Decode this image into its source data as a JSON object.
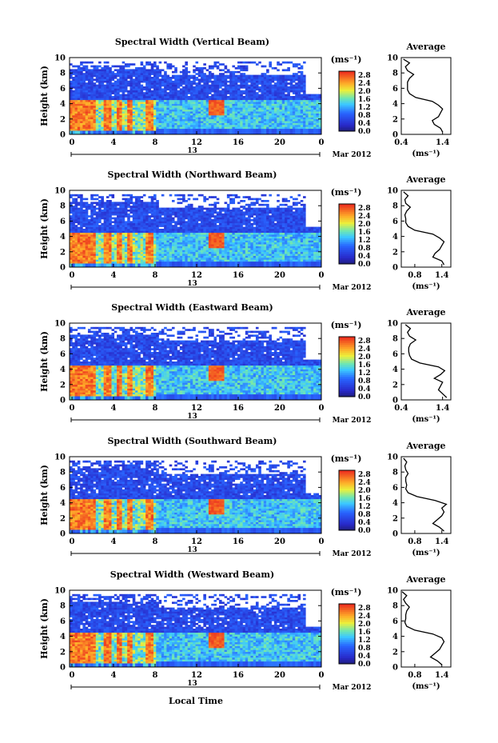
{
  "page": {
    "panel_titles": [
      "Spectral Width (Vertical Beam)",
      "Spectral Width (Northward Beam)",
      "Spectral Width (Eastward Beam)",
      "Spectral Width (Southward Beam)",
      "Spectral Width (Westward Beam)"
    ],
    "average_title": "Average",
    "ylabel": "Height (km)",
    "unit_label": "(ms⁻¹)",
    "date_label": "Mar 2012",
    "day_label": "13",
    "xlabel": "Local Time",
    "avg_xlabel": "(ms⁻¹)"
  },
  "chart_data": [
    {
      "type": "heatmap",
      "title": "Spectral Width (Vertical Beam)",
      "ylabel": "Height (km)",
      "x_ticks": [
        "0",
        "4",
        "8",
        "12",
        "16",
        "20",
        "0"
      ],
      "xlim": [
        0,
        24
      ],
      "y_ticks": [
        "0",
        "2",
        "4",
        "6",
        "8",
        "10"
      ],
      "ylim": [
        0,
        10
      ],
      "colorbar": {
        "label": "(ms⁻¹)",
        "ticks": [
          "0.0",
          "0.4",
          "0.8",
          "1.2",
          "1.6",
          "2.0",
          "2.4",
          "2.8"
        ],
        "range": [
          0,
          3.0
        ]
      },
      "date_label": "Mar 2012",
      "day_label": "13",
      "average_profile": {
        "title": "Average",
        "xlabel": "(ms⁻¹)",
        "x_ticks": [
          "0.4",
          "1.4"
        ],
        "xlim": [
          0.4,
          1.6
        ],
        "ylim": [
          0,
          10
        ],
        "height": [
          0.3,
          0.8,
          1.3,
          1.8,
          2.3,
          2.8,
          3.3,
          3.8,
          4.3,
          4.8,
          5.3,
          5.8,
          6.3,
          6.8,
          7.3,
          7.8,
          8.3,
          8.8,
          9.3,
          9.8
        ],
        "width": [
          1.4,
          1.35,
          1.2,
          1.15,
          1.3,
          1.35,
          1.4,
          1.3,
          1.15,
          0.75,
          0.6,
          0.55,
          0.55,
          0.55,
          0.6,
          0.7,
          0.55,
          0.5,
          0.6,
          0.45
        ]
      }
    },
    {
      "type": "heatmap",
      "title": "Spectral Width (Northward Beam)",
      "ylabel": "Height (km)",
      "x_ticks": [
        "0",
        "4",
        "8",
        "12",
        "16",
        "20",
        "0"
      ],
      "xlim": [
        0,
        24
      ],
      "y_ticks": [
        "0",
        "2",
        "4",
        "6",
        "8",
        "10"
      ],
      "ylim": [
        0,
        10
      ],
      "colorbar": {
        "label": "(ms⁻¹)",
        "ticks": [
          "0.0",
          "0.4",
          "0.8",
          "1.2",
          "1.6",
          "2.0",
          "2.4",
          "2.8"
        ],
        "range": [
          0,
          3.0
        ]
      },
      "date_label": "Mar 2012",
      "day_label": "13",
      "average_profile": {
        "title": "Average",
        "xlabel": "(ms⁻¹)",
        "x_ticks": [
          "0.8",
          "1.4"
        ],
        "xlim": [
          0.5,
          1.6
        ],
        "ylim": [
          0,
          10
        ],
        "height": [
          0.3,
          0.8,
          1.3,
          1.8,
          2.3,
          2.8,
          3.3,
          3.8,
          4.3,
          4.8,
          5.3,
          5.8,
          6.3,
          6.8,
          7.3,
          7.8,
          8.3,
          8.8,
          9.3,
          9.8
        ],
        "width": [
          1.45,
          1.4,
          1.2,
          1.25,
          1.35,
          1.4,
          1.45,
          1.35,
          1.2,
          0.8,
          0.65,
          0.6,
          0.6,
          0.58,
          0.62,
          0.7,
          0.6,
          0.58,
          0.65,
          0.55
        ]
      }
    },
    {
      "type": "heatmap",
      "title": "Spectral Width (Eastward Beam)",
      "ylabel": "Height (km)",
      "x_ticks": [
        "0",
        "4",
        "8",
        "12",
        "16",
        "20",
        "0"
      ],
      "xlim": [
        0,
        24
      ],
      "y_ticks": [
        "0",
        "2",
        "4",
        "6",
        "8",
        "10"
      ],
      "ylim": [
        0,
        10
      ],
      "colorbar": {
        "label": "(ms⁻¹)",
        "ticks": [
          "0.0",
          "0.4",
          "0.8",
          "1.2",
          "1.6",
          "2.0",
          "2.4",
          "2.8"
        ],
        "range": [
          0,
          3.0
        ]
      },
      "date_label": "Mar 2012",
      "day_label": "13",
      "average_profile": {
        "title": "Average",
        "xlabel": "(ms⁻¹)",
        "x_ticks": [
          "0.4",
          "1.4"
        ],
        "xlim": [
          0.4,
          1.6
        ],
        "ylim": [
          0,
          10
        ],
        "height": [
          0.3,
          0.8,
          1.3,
          1.8,
          2.3,
          2.8,
          3.3,
          3.8,
          4.3,
          4.8,
          5.3,
          5.8,
          6.3,
          6.8,
          7.3,
          7.8,
          8.3,
          8.8,
          9.3,
          9.8
        ],
        "width": [
          1.5,
          1.4,
          1.3,
          1.35,
          1.4,
          1.2,
          1.35,
          1.45,
          1.3,
          0.85,
          0.65,
          0.6,
          0.58,
          0.58,
          0.62,
          0.75,
          0.6,
          0.55,
          0.62,
          0.5
        ]
      }
    },
    {
      "type": "heatmap",
      "title": "Spectral Width (Southward Beam)",
      "ylabel": "Height (km)",
      "x_ticks": [
        "0",
        "4",
        "8",
        "12",
        "16",
        "20",
        "0"
      ],
      "xlim": [
        0,
        24
      ],
      "y_ticks": [
        "0",
        "2",
        "4",
        "6",
        "8",
        "10"
      ],
      "ylim": [
        0,
        10
      ],
      "colorbar": {
        "label": "(ms⁻¹)",
        "ticks": [
          "0.0",
          "0.4",
          "0.8",
          "1.2",
          "1.6",
          "2.0",
          "2.4",
          "2.8"
        ],
        "range": [
          0,
          3.0
        ]
      },
      "date_label": "Mar 2012",
      "day_label": "13",
      "average_profile": {
        "title": "Average",
        "xlabel": "(ms⁻¹)",
        "x_ticks": [
          "0.8",
          "1.4"
        ],
        "xlim": [
          0.5,
          1.6
        ],
        "ylim": [
          0,
          10
        ],
        "height": [
          0.3,
          0.8,
          1.3,
          1.8,
          2.3,
          2.8,
          3.3,
          3.8,
          4.3,
          4.8,
          5.3,
          5.8,
          6.3,
          6.8,
          7.3,
          7.8,
          8.3,
          8.8,
          9.3,
          9.8
        ],
        "width": [
          1.45,
          1.35,
          1.2,
          1.3,
          1.4,
          1.45,
          1.4,
          1.5,
          1.25,
          0.85,
          0.65,
          0.6,
          0.62,
          0.6,
          0.6,
          0.65,
          0.6,
          0.58,
          0.62,
          0.55
        ]
      }
    },
    {
      "type": "heatmap",
      "title": "Spectral Width (Westward Beam)",
      "ylabel": "Height (km)",
      "xlabel": "Local Time",
      "x_ticks": [
        "0",
        "4",
        "8",
        "12",
        "16",
        "20",
        "0"
      ],
      "xlim": [
        0,
        24
      ],
      "y_ticks": [
        "0",
        "2",
        "4",
        "6",
        "8",
        "10"
      ],
      "ylim": [
        0,
        10
      ],
      "colorbar": {
        "label": "(ms⁻¹)",
        "ticks": [
          "0.0",
          "0.4",
          "0.8",
          "1.2",
          "1.6",
          "2.0",
          "2.4",
          "2.8"
        ],
        "range": [
          0,
          3.0
        ]
      },
      "date_label": "Mar 2012",
      "day_label": "13",
      "average_profile": {
        "title": "Average",
        "xlabel": "(ms⁻¹)",
        "x_ticks": [
          "0.8",
          "1.4"
        ],
        "xlim": [
          0.5,
          1.6
        ],
        "ylim": [
          0,
          10
        ],
        "height": [
          0.3,
          0.8,
          1.3,
          1.8,
          2.3,
          2.8,
          3.3,
          3.8,
          4.3,
          4.8,
          5.3,
          5.8,
          6.3,
          6.8,
          7.3,
          7.8,
          8.3,
          8.8,
          9.3,
          9.8
        ],
        "width": [
          1.4,
          1.3,
          1.15,
          1.25,
          1.35,
          1.4,
          1.45,
          1.4,
          1.2,
          0.8,
          0.62,
          0.58,
          0.6,
          0.6,
          0.62,
          0.68,
          0.6,
          0.55,
          0.62,
          0.52
        ]
      }
    }
  ]
}
